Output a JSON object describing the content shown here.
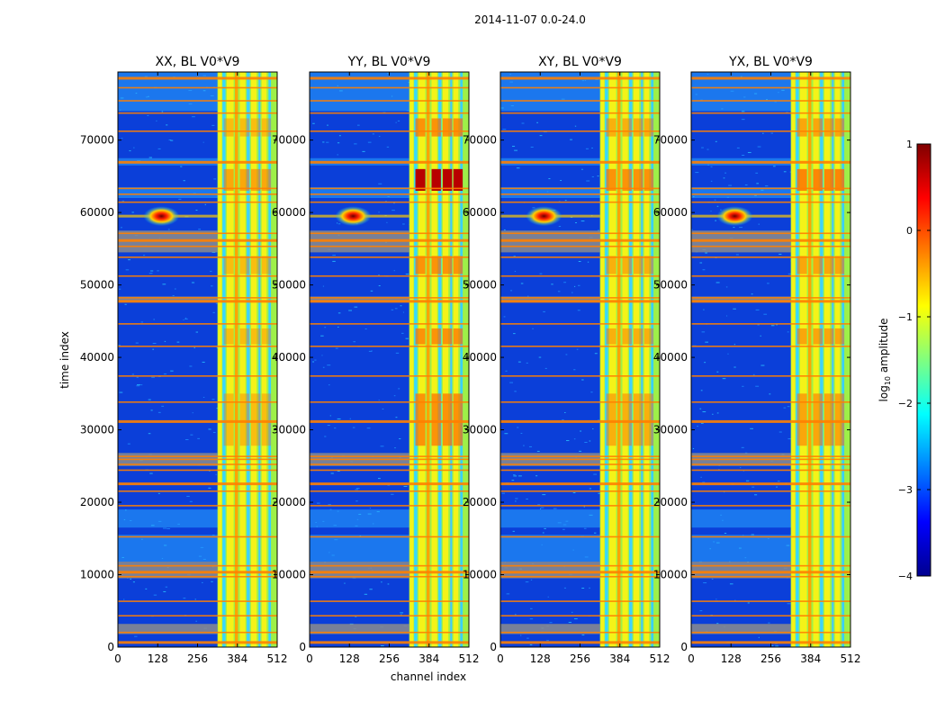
{
  "figure": {
    "suptitle": "2014-11-07 0.0-24.0"
  },
  "chart_data": {
    "type": "heatmap",
    "title": "2014-11-07 0.0-24.0",
    "xlabel": "channel index",
    "ylabel": "time index",
    "xlim": [
      0,
      512
    ],
    "ylim": [
      0,
      79400
    ],
    "xticks": [
      0,
      128,
      256,
      384,
      512
    ],
    "yticks": [
      0,
      10000,
      20000,
      30000,
      40000,
      50000,
      60000,
      70000
    ],
    "xtick_labels": [
      "0",
      "128",
      "256",
      "384",
      "512"
    ],
    "ytick_labels": [
      "0",
      "10000",
      "20000",
      "30000",
      "40000",
      "50000",
      "60000",
      "70000"
    ],
    "panels": [
      {
        "id": "xx",
        "title": "XX, BL V0*V9"
      },
      {
        "id": "yy",
        "title": "YY, BL V0*V9"
      },
      {
        "id": "xy",
        "title": "XY, BL V0*V9"
      },
      {
        "id": "yx",
        "title": "YX, BL V0*V9"
      }
    ],
    "colorbar": {
      "label": "log10 amplitude",
      "label_main": "log",
      "label_sub": "10",
      "label_rest": " amplitude",
      "range": [
        -4,
        1
      ],
      "ticks": [
        1,
        0,
        -1,
        -2,
        -3,
        -4
      ],
      "tick_labels": [
        "1",
        "0",
        "−1",
        "−2",
        "−3",
        "−4"
      ],
      "colormap": "jet"
    },
    "features": {
      "rfi_band_channels": [
        320,
        520
      ],
      "flagged_time_ranges": [
        [
          1800,
          3200
        ],
        [
          9500,
          11800
        ],
        [
          25000,
          26800
        ],
        [
          47600,
          48400
        ],
        [
          54500,
          57500
        ]
      ],
      "bright_time_ranges": [
        [
          63000,
          66000
        ],
        [
          51500,
          54000
        ],
        [
          41800,
          44000
        ],
        [
          27800,
          35000
        ],
        [
          70500,
          73000
        ]
      ],
      "hotspot": {
        "channel": 140,
        "time": 59500
      }
    },
    "colors": {
      "background": "#0b3fd9",
      "flagged": "#8c8c8c",
      "rfi_bright": "#b80000",
      "band_yellow": "#f4f318"
    }
  }
}
